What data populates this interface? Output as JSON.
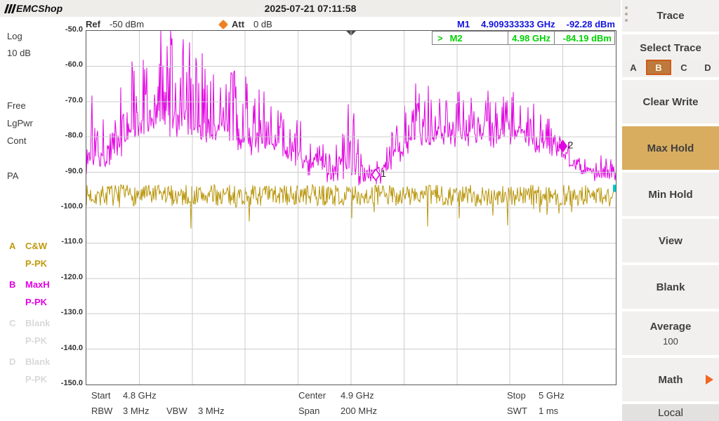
{
  "window": {
    "logo_emc": "EMC",
    "logo_shop": "Shop",
    "timestamp": "2025-07-21 07:11:58"
  },
  "header": {
    "ref_label": "Ref",
    "ref_value": "-50 dBm",
    "att_label": "Att",
    "att_value": "0 dB"
  },
  "markers": {
    "m1": {
      "label": "M1",
      "freq": "4.909333333 GHz",
      "level": "-92.28 dBm"
    },
    "m2": {
      "prefix": ">",
      "label": "M2",
      "freq": "4.98 GHz",
      "level": "-84.19 dBm"
    }
  },
  "left_panel": {
    "scale_type": "Log",
    "scale_div": "10 dB",
    "trigger": "Free",
    "detector_mode": "LgPwr",
    "sweep_mode": "Cont",
    "preamp": "PA"
  },
  "trace_legend": [
    {
      "letter": "A",
      "mode": "C&W",
      "detector": "P-PK",
      "color": "#bf9b0e"
    },
    {
      "letter": "B",
      "mode": "MaxH",
      "detector": "P-PK",
      "color": "#e100e1"
    },
    {
      "letter": "C",
      "mode": "Blank",
      "detector": "P-PK",
      "color": "#d9d9d9"
    },
    {
      "letter": "D",
      "mode": "Blank",
      "detector": "P-PK",
      "color": "#d9d9d9"
    }
  ],
  "bottom": {
    "start_label": "Start",
    "start_value": "4.8 GHz",
    "rbw_label": "RBW",
    "rbw_value": "3 MHz",
    "vbw_label": "VBW",
    "vbw_value": "3 MHz",
    "center_label": "Center",
    "center_value": "4.9 GHz",
    "span_label": "Span",
    "span_value": "200 MHz",
    "stop_label": "Stop",
    "stop_value": "5 GHz",
    "swt_label": "SWT",
    "swt_value": "1 ms"
  },
  "menu": {
    "header": "Trace",
    "select_trace_label": "Select Trace",
    "trace_buttons": [
      "A",
      "B",
      "C",
      "D"
    ],
    "active_trace": "B",
    "items": [
      {
        "label": "Clear Write"
      },
      {
        "label": "Max Hold",
        "active": true
      },
      {
        "label": "Min Hold"
      },
      {
        "label": "View"
      },
      {
        "label": "Blank"
      },
      {
        "label": "Average",
        "value": "100"
      },
      {
        "label": "Math",
        "arrow": true
      }
    ],
    "local_label": "Local",
    "active_color": "#d9ad60",
    "trace_active_color": "#bd7a3c"
  },
  "chart_data": {
    "type": "line",
    "title": "Spectrum sweep",
    "x_axis": {
      "start_ghz": 4.8,
      "stop_ghz": 5.0,
      "center_ghz": 4.9,
      "span_mhz": 200,
      "divisions": 10
    },
    "y_axis": {
      "ref_dbm": -50,
      "bottom_dbm": -150,
      "db_per_div": 10,
      "ticks": [
        "-50.0",
        "-60.0",
        "-70.0",
        "-80.0",
        "-90.0",
        "-100.0",
        "-110.0",
        "-120.0",
        "-130.0",
        "-140.0",
        "-150.0"
      ]
    },
    "grid_color": "#cccccc",
    "trace_a": {
      "name": "A C&W P-PK",
      "color": "#b9960b",
      "mean_dbm": -96.5,
      "noise_db": 6,
      "dip_prob": 0.05,
      "dip_depth_db": 7
    },
    "trace_b": {
      "name": "B MaxH P-PK",
      "color": "#e100e1",
      "envelope": [
        [
          0.0,
          -89,
          -80
        ],
        [
          0.012,
          -87,
          -63
        ],
        [
          0.03,
          -87,
          -76
        ],
        [
          0.055,
          -85,
          -72
        ],
        [
          0.075,
          -82,
          -56
        ],
        [
          0.095,
          -79,
          -51
        ],
        [
          0.125,
          -77,
          -50
        ],
        [
          0.165,
          -78,
          -50
        ],
        [
          0.195,
          -79,
          -52
        ],
        [
          0.225,
          -80,
          -56
        ],
        [
          0.255,
          -80,
          -60
        ],
        [
          0.285,
          -82,
          -59
        ],
        [
          0.315,
          -83,
          -63
        ],
        [
          0.345,
          -84,
          -67
        ],
        [
          0.375,
          -85,
          -71
        ],
        [
          0.405,
          -87,
          -77
        ],
        [
          0.435,
          -90,
          -82
        ],
        [
          0.47,
          -91,
          -82
        ],
        [
          0.5,
          -91,
          -71
        ],
        [
          0.53,
          -92,
          -87
        ],
        [
          0.547,
          -92,
          -88
        ],
        [
          0.565,
          -90,
          -82
        ],
        [
          0.59,
          -86,
          -72
        ],
        [
          0.615,
          -82,
          -64
        ],
        [
          0.64,
          -80,
          -66
        ],
        [
          0.67,
          -80,
          -68
        ],
        [
          0.7,
          -81,
          -67
        ],
        [
          0.73,
          -80,
          -69
        ],
        [
          0.76,
          -81,
          -68
        ],
        [
          0.79,
          -80,
          -70
        ],
        [
          0.82,
          -80,
          -69
        ],
        [
          0.85,
          -82,
          -72
        ],
        [
          0.875,
          -83,
          -76
        ],
        [
          0.9,
          -84,
          -81
        ],
        [
          0.925,
          -88,
          -85
        ],
        [
          0.95,
          -90,
          -87
        ],
        [
          1.0,
          -90,
          -86
        ]
      ]
    },
    "markers": [
      {
        "id": "1",
        "freq_ghz": 4.909333333,
        "level_dbm": -92.28,
        "filled": false
      },
      {
        "id": "2",
        "freq_ghz": 4.98,
        "level_dbm": -84.19,
        "filled": true
      }
    ],
    "right_edge_tick": {
      "color": "#00c8c8",
      "level_dbm": -94.5
    },
    "center_marker_color": "#4a4a4a"
  }
}
